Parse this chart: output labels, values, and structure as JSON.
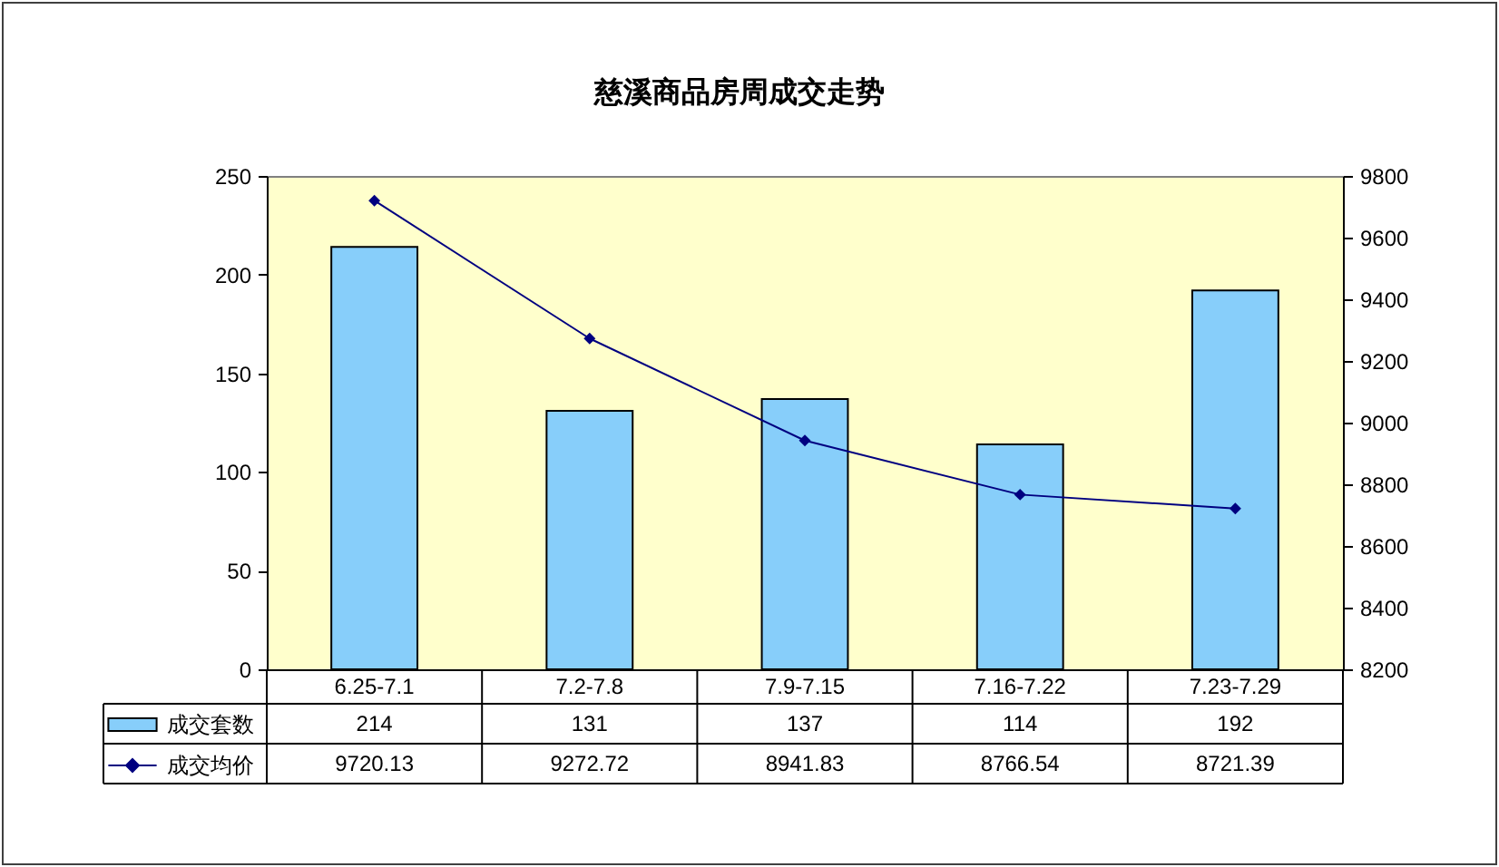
{
  "chart_data": {
    "type": "bar",
    "title": "慈溪商品房周成交走势",
    "categories": [
      "6.25-7.1",
      "7.2-7.8",
      "7.9-7.15",
      "7.16-7.22",
      "7.23-7.29"
    ],
    "series": [
      {
        "name": "成交套数",
        "color": "#87cefa",
        "values": [
          214,
          131,
          137,
          114,
          192
        ]
      },
      {
        "name": "成交均价",
        "type": "line",
        "axis": "y2",
        "color": "#000080",
        "values": [
          9720.13,
          9272.72,
          8941.83,
          8766.54,
          8721.39
        ]
      }
    ],
    "ylim": [
      0,
      250
    ],
    "yticks": [
      0,
      50,
      100,
      150,
      200,
      250
    ],
    "y2lim": [
      8200,
      9800
    ],
    "y2ticks": [
      8200,
      8400,
      8600,
      8800,
      9000,
      9200,
      9400,
      9600,
      9800
    ],
    "grid": false,
    "legend": "bottom left",
    "data_labels": true,
    "marker": "diamond",
    "line_style": "solid"
  }
}
